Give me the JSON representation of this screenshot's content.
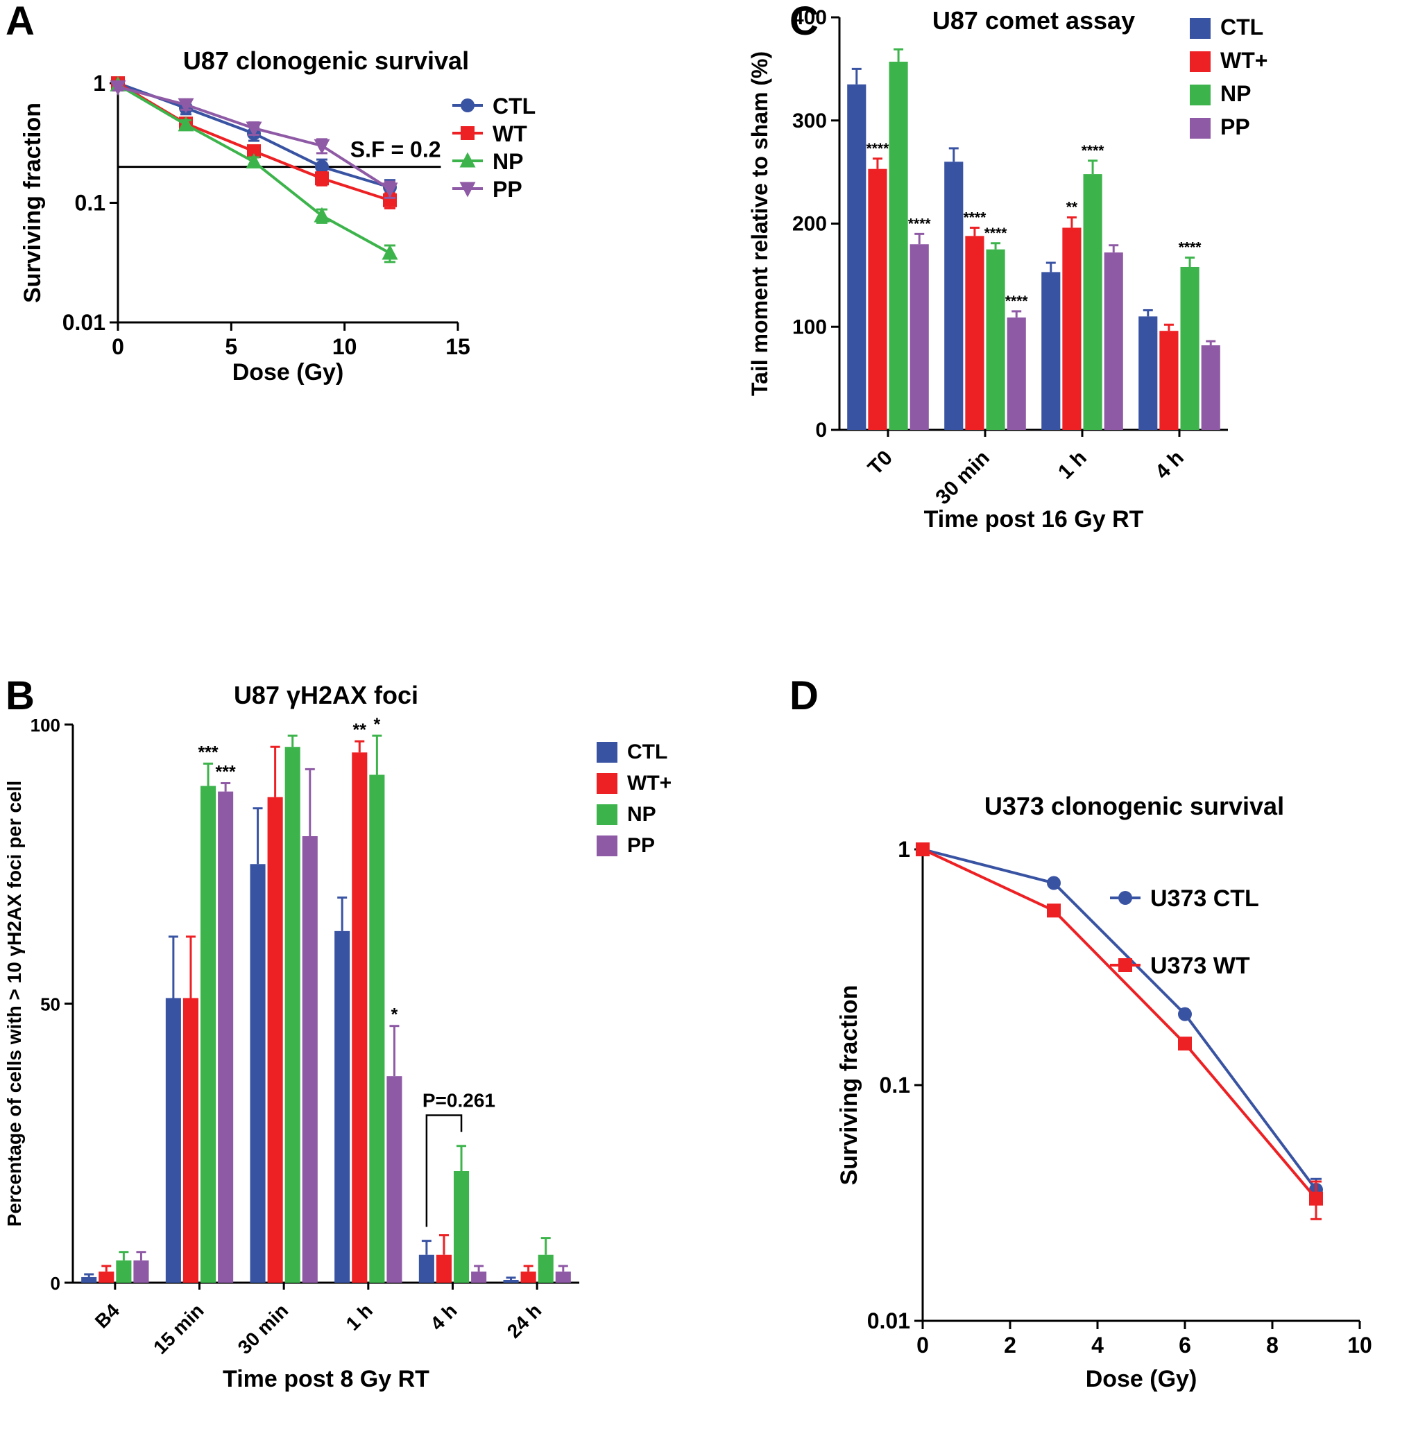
{
  "panels": {
    "A": {
      "letter": "A"
    },
    "B": {
      "letter": "B"
    },
    "C": {
      "letter": "C"
    },
    "D": {
      "letter": "D"
    }
  },
  "colors": {
    "ctl_blue": "#3953a3",
    "wt_red": "#ed2024",
    "np_green": "#3cb44b",
    "pp_purple": "#8f5aa5",
    "axis_black": "#000000"
  },
  "chart_data": [
    {
      "panel": "A",
      "type": "line",
      "title": "U87 clonogenic survival",
      "xlabel": "Dose (Gy)",
      "ylabel": "Surviving fraction",
      "yscale": "log",
      "ylim": [
        0.01,
        1
      ],
      "yticks": [
        1,
        0.1,
        0.01
      ],
      "xlim": [
        0,
        15
      ],
      "xticks": [
        0,
        5,
        10,
        15
      ],
      "x": [
        0,
        3,
        6,
        9,
        12
      ],
      "ref_line": {
        "y": 0.2,
        "label": "S.F = 0.2"
      },
      "legend_position": "right",
      "series": [
        {
          "name": "CTL",
          "color": "#3953a3",
          "marker": "circle",
          "values": [
            1,
            0.62,
            0.38,
            0.2,
            0.135
          ],
          "errors": [
            0.06,
            0.07,
            0.05,
            0.03,
            0.02
          ]
        },
        {
          "name": "WT",
          "color": "#ed2024",
          "marker": "square",
          "values": [
            1,
            0.46,
            0.27,
            0.16,
            0.105
          ],
          "errors": [
            0.05,
            0.04,
            0.03,
            0.02,
            0.015
          ]
        },
        {
          "name": "NP",
          "color": "#3cb44b",
          "marker": "triangle-up",
          "values": [
            0.97,
            0.45,
            0.22,
            0.078,
            0.038
          ],
          "errors": [
            0.05,
            0.04,
            0.02,
            0.01,
            0.006
          ]
        },
        {
          "name": "PP",
          "color": "#8f5aa5",
          "marker": "triangle-down",
          "values": [
            0.93,
            0.66,
            0.42,
            0.3,
            0.13
          ],
          "errors": [
            0.06,
            0.06,
            0.05,
            0.04,
            0.02
          ]
        }
      ]
    },
    {
      "panel": "B",
      "type": "bar",
      "title": "U87 γH2AX foci",
      "xlabel": "Time post 8 Gy RT",
      "ylabel": "Percentage of cells with > 10 γH2AX foci per cell",
      "ylim": [
        0,
        100
      ],
      "yticks": [
        0,
        50,
        100
      ],
      "grid": false,
      "legend_position": "right",
      "categories": [
        "B4",
        "15 min",
        "30 min",
        "1 h",
        "4 h",
        "24 h"
      ],
      "series": [
        {
          "name": "CTL",
          "color": "#3953a3",
          "values": [
            1,
            51,
            75,
            63,
            5,
            0.5
          ],
          "errors": [
            0.5,
            11,
            10,
            6,
            2.5,
            0.4
          ],
          "stars": [
            "",
            "",
            "",
            "",
            "",
            ""
          ]
        },
        {
          "name": "WT+",
          "color": "#ed2024",
          "values": [
            2,
            51,
            87,
            95,
            5,
            2
          ],
          "errors": [
            1,
            11,
            9,
            2,
            3.5,
            1
          ],
          "stars": [
            "",
            "",
            "",
            "**",
            "",
            ""
          ]
        },
        {
          "name": "NP",
          "color": "#3cb44b",
          "values": [
            4,
            89,
            96,
            91,
            20,
            5
          ],
          "errors": [
            1.5,
            4,
            2,
            7,
            4.5,
            3
          ],
          "stars": [
            "",
            "***",
            "",
            "*",
            "",
            ""
          ]
        },
        {
          "name": "PP",
          "color": "#8f5aa5",
          "values": [
            4,
            88,
            80,
            37,
            2,
            2
          ],
          "errors": [
            1.5,
            1.5,
            12,
            9,
            1,
            1
          ],
          "stars": [
            "",
            "***",
            "",
            "*",
            "",
            ""
          ]
        }
      ],
      "bracket": {
        "cat_index": 4,
        "s1": 0,
        "s2": 2,
        "y1": 10,
        "y2": 27,
        "y_top": 30,
        "label": "P=0.261"
      }
    },
    {
      "panel": "C",
      "type": "bar",
      "title": "U87 comet assay",
      "xlabel": "Time post 16 Gy RT",
      "ylabel": "Tail moment relative to sham (%)",
      "ylim": [
        0,
        400
      ],
      "yticks": [
        0,
        100,
        200,
        300,
        400
      ],
      "grid": false,
      "legend_position": "top-right",
      "categories": [
        "T0",
        "30 min",
        "1 h",
        "4 h"
      ],
      "series": [
        {
          "name": "CTL",
          "color": "#3953a3",
          "values": [
            335,
            260,
            153,
            110
          ],
          "errors": [
            15,
            13,
            9,
            6
          ],
          "stars": [
            "",
            "",
            "",
            ""
          ]
        },
        {
          "name": "WT+",
          "color": "#ed2024",
          "values": [
            253,
            188,
            196,
            96
          ],
          "errors": [
            10,
            8,
            10,
            6
          ],
          "stars": [
            "****",
            "****",
            "**",
            ""
          ]
        },
        {
          "name": "NP",
          "color": "#3cb44b",
          "values": [
            357,
            175,
            248,
            158
          ],
          "errors": [
            12,
            6,
            13,
            9
          ],
          "stars": [
            "",
            "****",
            "****",
            "****"
          ]
        },
        {
          "name": "PP",
          "color": "#8f5aa5",
          "values": [
            180,
            109,
            172,
            82
          ],
          "errors": [
            10,
            6,
            7,
            4
          ],
          "stars": [
            "****",
            "****",
            "",
            ""
          ]
        }
      ]
    },
    {
      "panel": "D",
      "type": "line",
      "title": "U373 clonogenic survival",
      "xlabel": "Dose (Gy)",
      "ylabel": "Surviving fraction",
      "yscale": "log",
      "ylim": [
        0.01,
        1
      ],
      "yticks": [
        1,
        0.1,
        0.01
      ],
      "xlim": [
        0,
        10
      ],
      "xticks": [
        0,
        2,
        4,
        6,
        8,
        10
      ],
      "x": [
        0,
        3,
        6,
        9
      ],
      "legend_position": "inside-right",
      "series": [
        {
          "name": "U373 CTL",
          "color": "#3953a3",
          "marker": "circle",
          "values": [
            1,
            0.72,
            0.2,
            0.036
          ],
          "errors": [
            0,
            0,
            0,
            0.004
          ]
        },
        {
          "name": "U373 WT",
          "color": "#ed2024",
          "marker": "square",
          "values": [
            1,
            0.55,
            0.15,
            0.033
          ],
          "errors": [
            0,
            0,
            0,
            0.006
          ]
        }
      ]
    }
  ]
}
